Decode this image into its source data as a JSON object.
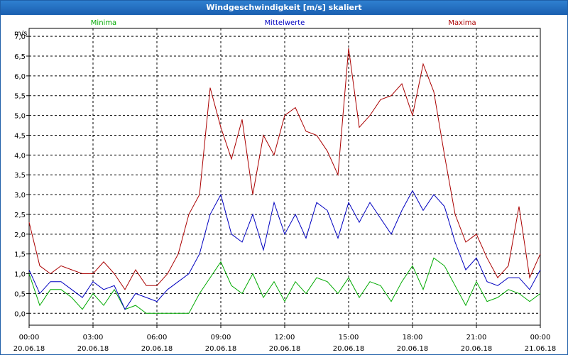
{
  "window": {
    "title": "Windgeschwindigkeit [m/s] skaliert"
  },
  "chart_data": {
    "type": "line",
    "title": "Windgeschwindigkeit [m/s] skaliert",
    "ylabel": "m/s",
    "xlabel": "",
    "ylim": [
      -0.3,
      7.2
    ],
    "xlim": [
      0,
      24
    ],
    "grid": true,
    "y_ticks": [
      0,
      0.5,
      1,
      1.5,
      2,
      2.5,
      3,
      3.5,
      4,
      4.5,
      5,
      5.5,
      6,
      6.5,
      7
    ],
    "y_tick_labels": [
      "0,0",
      "0,5",
      "1,0",
      "1,5",
      "2,0",
      "2,5",
      "3,0",
      "3,5",
      "4,0",
      "4,5",
      "5,0",
      "5,5",
      "6,0",
      "6,5",
      "7,0"
    ],
    "x_ticks": [
      {
        "hour": 0,
        "time": "00:00",
        "date": "20.06.18"
      },
      {
        "hour": 3,
        "time": "03:00",
        "date": "20.06.18"
      },
      {
        "hour": 6,
        "time": "06:00",
        "date": "20.06.18"
      },
      {
        "hour": 9,
        "time": "09:00",
        "date": "20.06.18"
      },
      {
        "hour": 12,
        "time": "12:00",
        "date": "20.06.18"
      },
      {
        "hour": 15,
        "time": "15:00",
        "date": "20.06.18"
      },
      {
        "hour": 18,
        "time": "18:00",
        "date": "20.06.18"
      },
      {
        "hour": 21,
        "time": "21:00",
        "date": "20.06.18"
      },
      {
        "hour": 24,
        "time": "00:00",
        "date": "21.06.18"
      }
    ],
    "legend": [
      "Minima",
      "Mittelwerte",
      "Maxima"
    ],
    "series": [
      {
        "name": "Minima",
        "color": "#00aa00",
        "x": [
          0,
          0.5,
          1,
          1.5,
          2,
          2.5,
          3,
          3.5,
          4,
          4.5,
          5,
          5.5,
          6,
          6.5,
          7,
          7.5,
          8,
          8.5,
          9,
          9.5,
          10,
          10.5,
          11,
          11.5,
          12,
          12.5,
          13,
          13.5,
          14,
          14.5,
          15,
          15.5,
          16,
          16.5,
          17,
          17.5,
          18,
          18.5,
          19,
          19.5,
          20,
          20.5,
          21,
          21.5,
          22,
          22.5,
          23,
          23.5,
          24
        ],
        "values": [
          1.0,
          0.2,
          0.6,
          0.6,
          0.4,
          0.1,
          0.5,
          0.2,
          0.6,
          0.1,
          0.2,
          0.0,
          0.0,
          0.0,
          0.0,
          0.0,
          0.5,
          0.9,
          1.3,
          0.7,
          0.5,
          1.0,
          0.4,
          0.8,
          0.3,
          0.8,
          0.5,
          0.9,
          0.8,
          0.5,
          0.9,
          0.4,
          0.8,
          0.7,
          0.3,
          0.8,
          1.2,
          0.6,
          1.4,
          1.2,
          0.7,
          0.2,
          0.8,
          0.3,
          0.4,
          0.6,
          0.5,
          0.3,
          0.5
        ]
      },
      {
        "name": "Mittelwerte",
        "color": "#0000c0",
        "x": [
          0,
          0.5,
          1,
          1.5,
          2,
          2.5,
          3,
          3.5,
          4,
          4.5,
          5,
          5.5,
          6,
          6.5,
          7,
          7.5,
          8,
          8.5,
          9,
          9.5,
          10,
          10.5,
          11,
          11.5,
          12,
          12.5,
          13,
          13.5,
          14,
          14.5,
          15,
          15.5,
          16,
          16.5,
          17,
          17.5,
          18,
          18.5,
          19,
          19.5,
          20,
          20.5,
          21,
          21.5,
          22,
          22.5,
          23,
          23.5,
          24
        ],
        "values": [
          1.1,
          0.5,
          0.8,
          0.8,
          0.6,
          0.4,
          0.8,
          0.6,
          0.7,
          0.1,
          0.5,
          0.4,
          0.3,
          0.6,
          0.8,
          1.0,
          1.5,
          2.5,
          3.0,
          2.0,
          1.8,
          2.5,
          1.6,
          2.8,
          2.0,
          2.5,
          1.9,
          2.8,
          2.6,
          1.9,
          2.8,
          2.3,
          2.8,
          2.4,
          2.0,
          2.6,
          3.1,
          2.6,
          3.0,
          2.7,
          1.8,
          1.1,
          1.4,
          0.8,
          0.7,
          0.9,
          0.9,
          0.6,
          1.1
        ]
      },
      {
        "name": "Maxima",
        "color": "#aa0000",
        "x": [
          0,
          0.5,
          1,
          1.5,
          2,
          2.5,
          3,
          3.5,
          4,
          4.5,
          5,
          5.5,
          6,
          6.5,
          7,
          7.5,
          8,
          8.5,
          9,
          9.5,
          10,
          10.5,
          11,
          11.5,
          12,
          12.5,
          13,
          13.5,
          14,
          14.5,
          15,
          15.5,
          16,
          16.5,
          17,
          17.5,
          18,
          18.5,
          19,
          19.5,
          20,
          20.5,
          21,
          21.5,
          22,
          22.5,
          23,
          23.5,
          24
        ],
        "values": [
          2.3,
          1.2,
          1.0,
          1.2,
          1.1,
          1.0,
          1.0,
          1.3,
          1.0,
          0.6,
          1.1,
          0.7,
          0.7,
          1.0,
          1.5,
          2.5,
          3.0,
          5.7,
          4.7,
          3.9,
          4.9,
          3.0,
          4.5,
          4.0,
          5.0,
          5.2,
          4.6,
          4.5,
          4.1,
          3.5,
          6.7,
          4.7,
          5.0,
          5.4,
          5.5,
          5.8,
          5.0,
          6.3,
          5.6,
          4.0,
          2.5,
          1.8,
          2.0,
          1.4,
          0.9,
          1.2,
          2.7,
          0.9,
          1.5
        ]
      }
    ]
  }
}
